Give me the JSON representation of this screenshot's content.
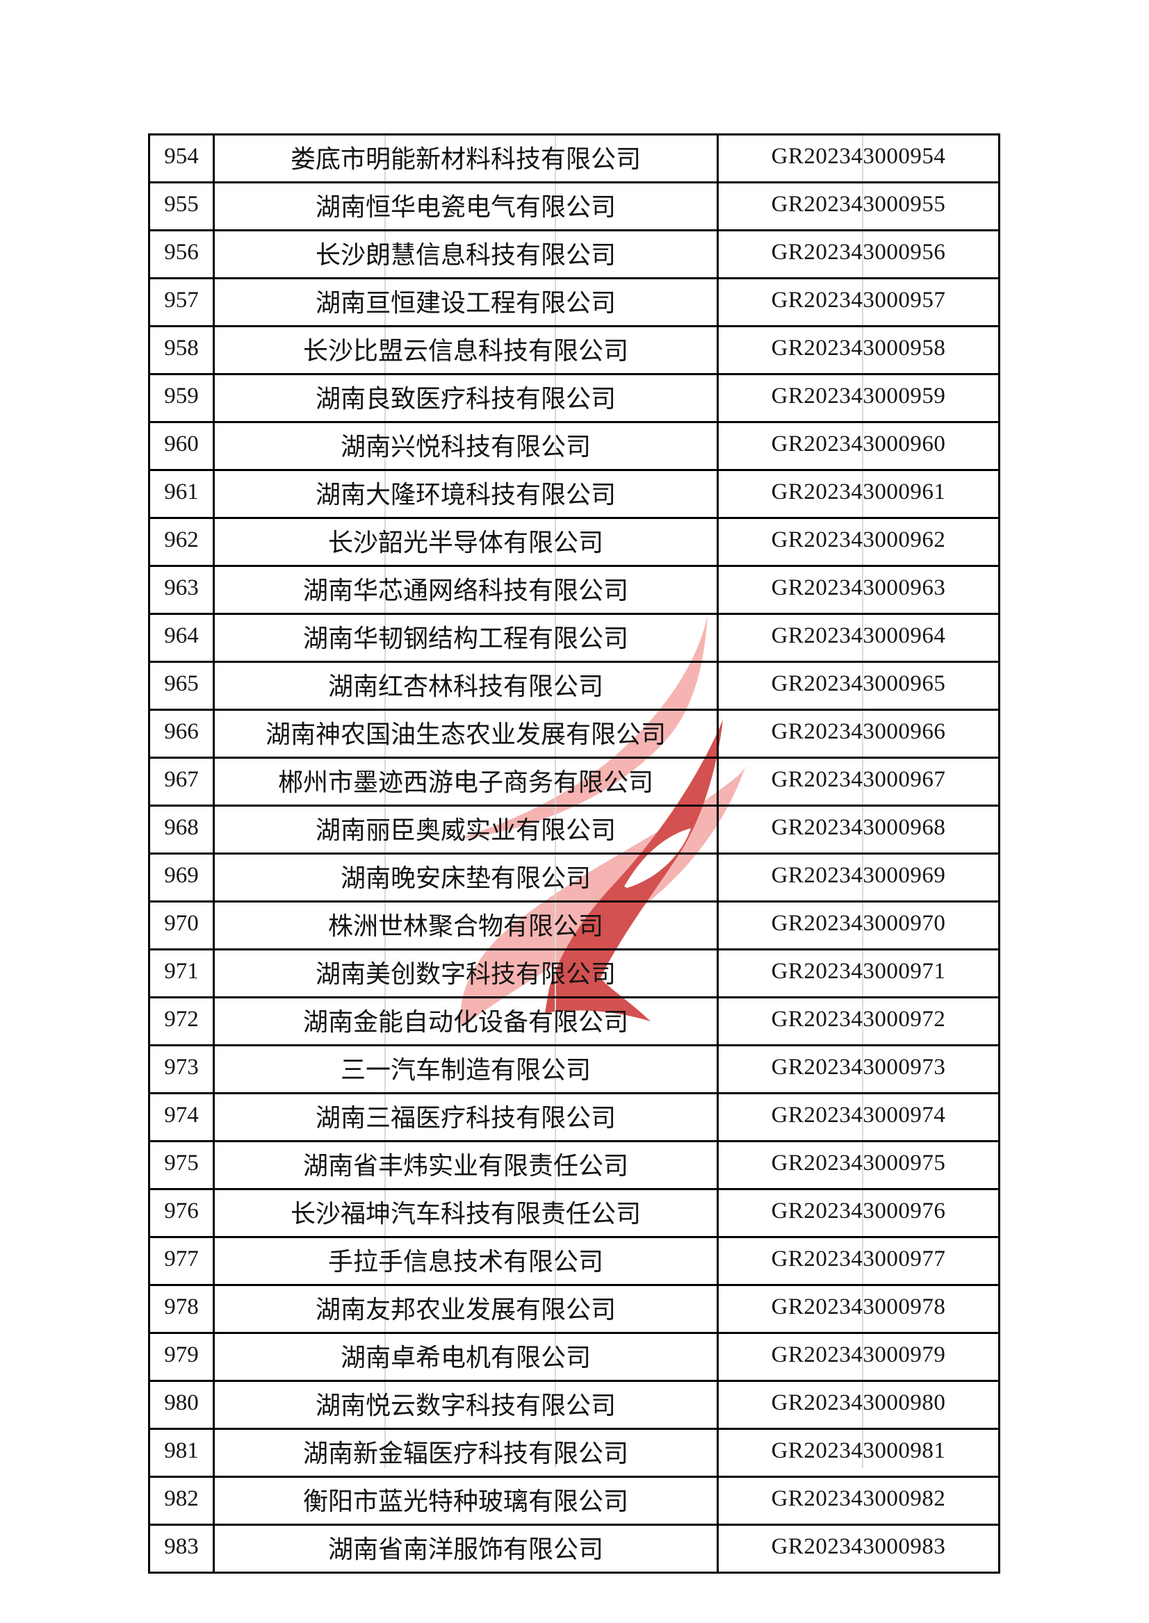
{
  "watermark": {
    "name": "high-tech-enterprise-flame-logo",
    "pink_color": "#f5b4b2",
    "red_color": "#d35150"
  },
  "table": {
    "rows": [
      {
        "no": "954",
        "company": "娄底市明能新材料科技有限公司",
        "cert": "GR202343000954"
      },
      {
        "no": "955",
        "company": "湖南恒华电瓷电气有限公司",
        "cert": "GR202343000955"
      },
      {
        "no": "956",
        "company": "长沙朗慧信息科技有限公司",
        "cert": "GR202343000956"
      },
      {
        "no": "957",
        "company": "湖南亘恒建设工程有限公司",
        "cert": "GR202343000957"
      },
      {
        "no": "958",
        "company": "长沙比盟云信息科技有限公司",
        "cert": "GR202343000958"
      },
      {
        "no": "959",
        "company": "湖南良致医疗科技有限公司",
        "cert": "GR202343000959"
      },
      {
        "no": "960",
        "company": "湖南兴悦科技有限公司",
        "cert": "GR202343000960"
      },
      {
        "no": "961",
        "company": "湖南大隆环境科技有限公司",
        "cert": "GR202343000961"
      },
      {
        "no": "962",
        "company": "长沙韶光半导体有限公司",
        "cert": "GR202343000962"
      },
      {
        "no": "963",
        "company": "湖南华芯通网络科技有限公司",
        "cert": "GR202343000963"
      },
      {
        "no": "964",
        "company": "湖南华韧钢结构工程有限公司",
        "cert": "GR202343000964"
      },
      {
        "no": "965",
        "company": "湖南红杏林科技有限公司",
        "cert": "GR202343000965"
      },
      {
        "no": "966",
        "company": "湖南神农国油生态农业发展有限公司",
        "cert": "GR202343000966"
      },
      {
        "no": "967",
        "company": "郴州市墨迹西游电子商务有限公司",
        "cert": "GR202343000967"
      },
      {
        "no": "968",
        "company": "湖南丽臣奥威实业有限公司",
        "cert": "GR202343000968"
      },
      {
        "no": "969",
        "company": "湖南晚安床垫有限公司",
        "cert": "GR202343000969"
      },
      {
        "no": "970",
        "company": "株洲世林聚合物有限公司",
        "cert": "GR202343000970"
      },
      {
        "no": "971",
        "company": "湖南美创数字科技有限公司",
        "cert": "GR202343000971"
      },
      {
        "no": "972",
        "company": "湖南金能自动化设备有限公司",
        "cert": "GR202343000972"
      },
      {
        "no": "973",
        "company": "三一汽车制造有限公司",
        "cert": "GR202343000973"
      },
      {
        "no": "974",
        "company": "湖南三福医疗科技有限公司",
        "cert": "GR202343000974"
      },
      {
        "no": "975",
        "company": "湖南省丰炜实业有限责任公司",
        "cert": "GR202343000975"
      },
      {
        "no": "976",
        "company": "长沙福坤汽车科技有限责任公司",
        "cert": "GR202343000976"
      },
      {
        "no": "977",
        "company": "手拉手信息技术有限公司",
        "cert": "GR202343000977"
      },
      {
        "no": "978",
        "company": "湖南友邦农业发展有限公司",
        "cert": "GR202343000978"
      },
      {
        "no": "979",
        "company": "湖南卓希电机有限公司",
        "cert": "GR202343000979"
      },
      {
        "no": "980",
        "company": "湖南悦云数字科技有限公司",
        "cert": "GR202343000980"
      },
      {
        "no": "981",
        "company": "湖南新金辐医疗科技有限公司",
        "cert": "GR202343000981"
      },
      {
        "no": "982",
        "company": "衡阳市蓝光特种玻璃有限公司",
        "cert": "GR202343000982"
      },
      {
        "no": "983",
        "company": "湖南省南洋服饰有限公司",
        "cert": "GR202343000983"
      }
    ]
  }
}
